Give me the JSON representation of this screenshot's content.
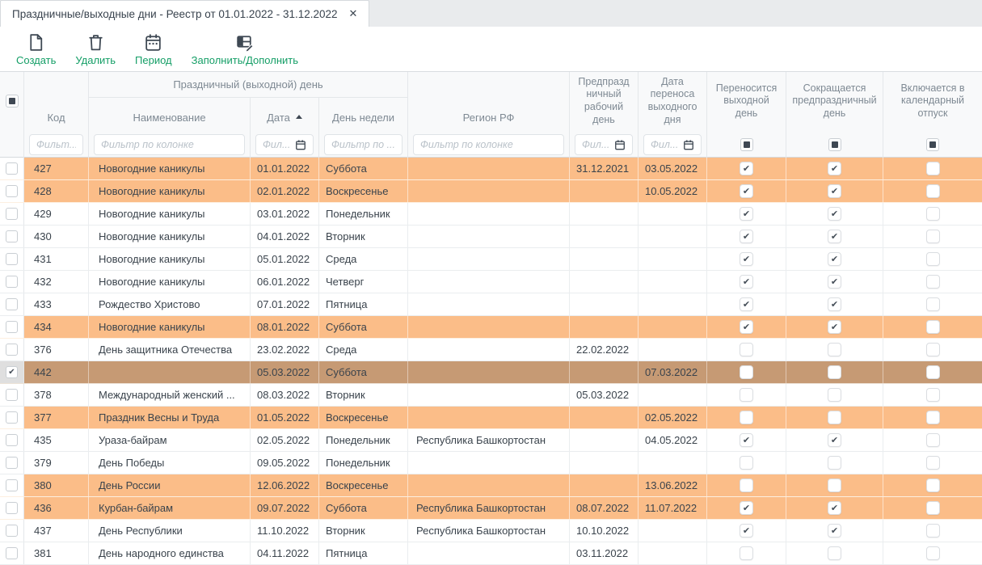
{
  "tab": {
    "title": "Праздничные/выходные дни - Реестр от 01.01.2022 - 31.12.2022",
    "close_label": "✕"
  },
  "toolbar": {
    "create_label": "Создать",
    "delete_label": "Удалить",
    "period_label": "Период",
    "fill_label": "Заполнить/Дополнить"
  },
  "header": {
    "group": "Праздничный (выходной) день",
    "col_code": "Код",
    "col_name": "Наименование",
    "col_date": "Дата",
    "col_weekday": "День недели",
    "col_region": "Регион РФ",
    "col_pre_holiday": "Предпразд\nничный\nрабочий\nдень",
    "col_transfer": "Дата\nпереноса\nвыходного\nдня",
    "col_carries": "Переносится\nвыходной\nдень",
    "col_shortens": "Сокращается\nпредпраздничный\nдень",
    "col_vacation": "Включается в\nкалендарный\nотпуск"
  },
  "filters": {
    "code": "Фильт...",
    "name": "Фильтр по колонке",
    "date": "Фил...",
    "weekday": "Фильтр по ...",
    "region": "Фильтр по колонке",
    "pre_holiday": "Фил...",
    "transfer": "Фил..."
  },
  "colors": {
    "holiday_row": "#FBBD88",
    "selected_row": "#C69A74",
    "accent_green": "#149E66",
    "icon_dark": "#3E4853"
  },
  "rows": [
    {
      "code": "427",
      "name": "Новогодние каникулы",
      "date": "01.01.2022",
      "weekday": "Суббота",
      "region": "",
      "pre_holiday": "31.12.2021",
      "transfer": "03.05.2022",
      "carries": true,
      "shortens": true,
      "vacation": false,
      "style": "orange",
      "selected": false
    },
    {
      "code": "428",
      "name": "Новогодние каникулы",
      "date": "02.01.2022",
      "weekday": "Воскресенье",
      "region": "",
      "pre_holiday": "",
      "transfer": "10.05.2022",
      "carries": true,
      "shortens": true,
      "vacation": false,
      "style": "orange",
      "selected": false
    },
    {
      "code": "429",
      "name": "Новогодние каникулы",
      "date": "03.01.2022",
      "weekday": "Понедельник",
      "region": "",
      "pre_holiday": "",
      "transfer": "",
      "carries": true,
      "shortens": true,
      "vacation": false,
      "style": "white",
      "selected": false
    },
    {
      "code": "430",
      "name": "Новогодние каникулы",
      "date": "04.01.2022",
      "weekday": "Вторник",
      "region": "",
      "pre_holiday": "",
      "transfer": "",
      "carries": true,
      "shortens": true,
      "vacation": false,
      "style": "white",
      "selected": false
    },
    {
      "code": "431",
      "name": "Новогодние каникулы",
      "date": "05.01.2022",
      "weekday": "Среда",
      "region": "",
      "pre_holiday": "",
      "transfer": "",
      "carries": true,
      "shortens": true,
      "vacation": false,
      "style": "white",
      "selected": false
    },
    {
      "code": "432",
      "name": "Новогодние каникулы",
      "date": "06.01.2022",
      "weekday": "Четверг",
      "region": "",
      "pre_holiday": "",
      "transfer": "",
      "carries": true,
      "shortens": true,
      "vacation": false,
      "style": "white",
      "selected": false
    },
    {
      "code": "433",
      "name": "Рождество Христово",
      "date": "07.01.2022",
      "weekday": "Пятница",
      "region": "",
      "pre_holiday": "",
      "transfer": "",
      "carries": true,
      "shortens": true,
      "vacation": false,
      "style": "white",
      "selected": false
    },
    {
      "code": "434",
      "name": "Новогодние каникулы",
      "date": "08.01.2022",
      "weekday": "Суббота",
      "region": "",
      "pre_holiday": "",
      "transfer": "",
      "carries": true,
      "shortens": true,
      "vacation": false,
      "style": "orange",
      "selected": false
    },
    {
      "code": "376",
      "name": "День защитника Отечества",
      "date": "23.02.2022",
      "weekday": "Среда",
      "region": "",
      "pre_holiday": "22.02.2022",
      "transfer": "",
      "carries": false,
      "shortens": false,
      "vacation": false,
      "style": "white",
      "selected": false
    },
    {
      "code": "442",
      "name": "",
      "date": "05.03.2022",
      "weekday": "Суббота",
      "region": "",
      "pre_holiday": "",
      "transfer": "07.03.2022",
      "carries": false,
      "shortens": false,
      "vacation": false,
      "style": "selected",
      "selected": true
    },
    {
      "code": "378",
      "name": "Международный женский ...",
      "date": "08.03.2022",
      "weekday": "Вторник",
      "region": "",
      "pre_holiday": "05.03.2022",
      "transfer": "",
      "carries": false,
      "shortens": false,
      "vacation": false,
      "style": "white",
      "selected": false
    },
    {
      "code": "377",
      "name": "Праздник Весны и Труда",
      "date": "01.05.2022",
      "weekday": "Воскресенье",
      "region": "",
      "pre_holiday": "",
      "transfer": "02.05.2022",
      "carries": false,
      "shortens": false,
      "vacation": false,
      "style": "orange",
      "selected": false
    },
    {
      "code": "435",
      "name": "Ураза-байрам",
      "date": "02.05.2022",
      "weekday": "Понедельник",
      "region": "Республика Башкортостан",
      "pre_holiday": "",
      "transfer": "04.05.2022",
      "carries": true,
      "shortens": true,
      "vacation": false,
      "style": "white",
      "selected": false
    },
    {
      "code": "379",
      "name": "День Победы",
      "date": "09.05.2022",
      "weekday": "Понедельник",
      "region": "",
      "pre_holiday": "",
      "transfer": "",
      "carries": false,
      "shortens": false,
      "vacation": false,
      "style": "white",
      "selected": false
    },
    {
      "code": "380",
      "name": "День России",
      "date": "12.06.2022",
      "weekday": "Воскресенье",
      "region": "",
      "pre_holiday": "",
      "transfer": "13.06.2022",
      "carries": false,
      "shortens": false,
      "vacation": false,
      "style": "orange",
      "selected": false
    },
    {
      "code": "436",
      "name": "Курбан-байрам",
      "date": "09.07.2022",
      "weekday": "Суббота",
      "region": "Республика Башкортостан",
      "pre_holiday": "08.07.2022",
      "transfer": "11.07.2022",
      "carries": true,
      "shortens": true,
      "vacation": false,
      "style": "orange",
      "selected": false
    },
    {
      "code": "437",
      "name": "День Республики",
      "date": "11.10.2022",
      "weekday": "Вторник",
      "region": "Республика Башкортостан",
      "pre_holiday": "10.10.2022",
      "transfer": "",
      "carries": true,
      "shortens": true,
      "vacation": false,
      "style": "white",
      "selected": false
    },
    {
      "code": "381",
      "name": "День народного единства",
      "date": "04.11.2022",
      "weekday": "Пятница",
      "region": "",
      "pre_holiday": "03.11.2022",
      "transfer": "",
      "carries": false,
      "shortens": false,
      "vacation": false,
      "style": "white",
      "selected": false
    }
  ]
}
